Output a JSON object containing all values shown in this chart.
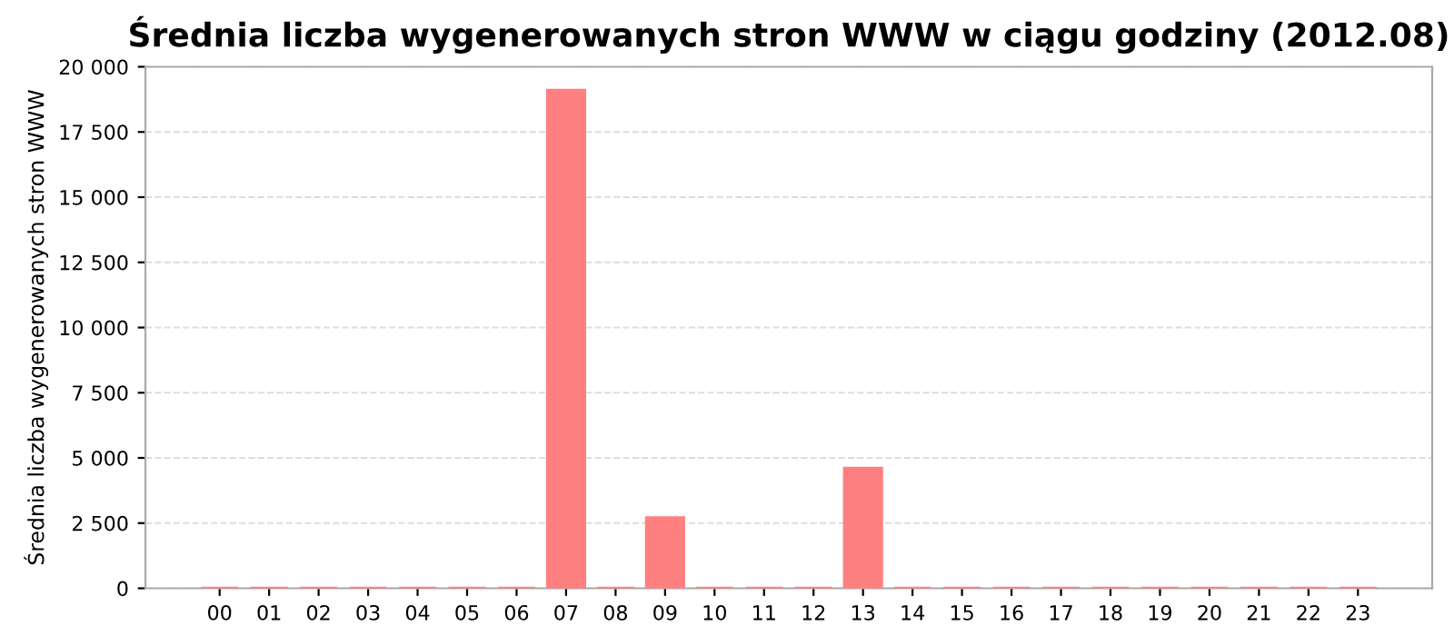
{
  "chart_data": {
    "type": "bar",
    "title": "Średnia liczba wygenerowanych stron WWW w ciągu godziny (2012.08)",
    "ylabel": "Średnia liczba wygenerowanych stron WWW",
    "categories": [
      "00",
      "01",
      "02",
      "03",
      "04",
      "05",
      "06",
      "07",
      "08",
      "09",
      "10",
      "11",
      "12",
      "13",
      "14",
      "15",
      "16",
      "17",
      "18",
      "19",
      "20",
      "21",
      "22",
      "23"
    ],
    "values": [
      0,
      0,
      0,
      0,
      0,
      0,
      0,
      19100,
      0,
      2700,
      0,
      0,
      0,
      4600,
      0,
      0,
      0,
      0,
      0,
      0,
      0,
      0,
      0,
      0
    ],
    "color": "#ff8080",
    "ylim": [
      0,
      20000
    ],
    "yticks": [
      0,
      {
        "value": 2500,
        "label": "2 500"
      },
      {
        "value": 5000,
        "label": "5 000"
      },
      {
        "value": 7500,
        "label": "7 500"
      },
      {
        "value": 10000,
        "label": "10 000"
      },
      {
        "value": 12500,
        "label": "12 500"
      },
      {
        "value": 15000,
        "label": "15 000"
      },
      {
        "value": 17500,
        "label": "17 500"
      },
      {
        "value": 20000,
        "label": "20 000"
      }
    ],
    "grid": "y"
  }
}
